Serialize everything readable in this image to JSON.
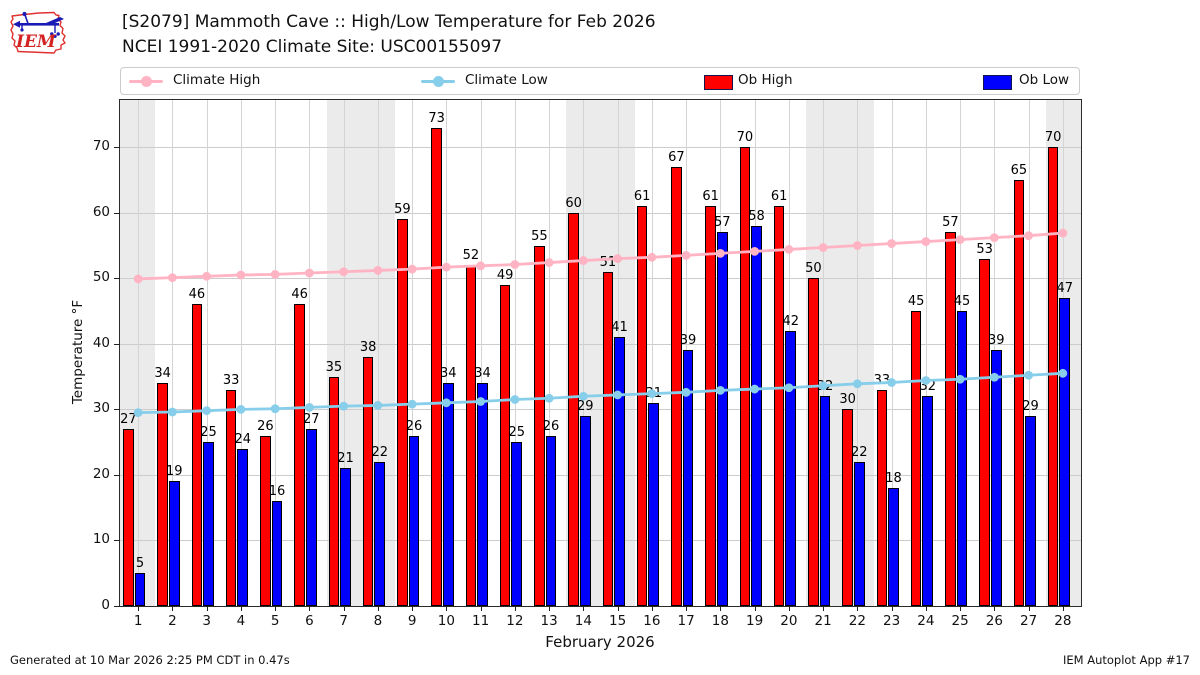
{
  "header": {
    "title_line1": "[S2079] Mammoth Cave :: High/Low Temperature for Feb 2026",
    "title_line2": "NCEI 1991-2020 Climate Site: USC00155097",
    "logo_text": "IEM"
  },
  "footer": {
    "generated": "Generated at 10 Mar 2026 2:25 PM CDT in 0.47s",
    "app": "IEM Autoplot App #17"
  },
  "chart_data": {
    "type": "bar",
    "title": "[S2079] Mammoth Cave :: High/Low Temperature for Feb 2026",
    "subtitle": "NCEI 1991-2020 Climate Site: USC00155097",
    "xlabel": "February 2026",
    "ylabel": "Temperature °F",
    "categories": [
      1,
      2,
      3,
      4,
      5,
      6,
      7,
      8,
      9,
      10,
      11,
      12,
      13,
      14,
      15,
      16,
      17,
      18,
      19,
      20,
      21,
      22,
      23,
      24,
      25,
      26,
      27,
      28
    ],
    "series": [
      {
        "name": "Climate High",
        "type": "line",
        "color": "#ffb3c3",
        "values": [
          49.9,
          50.1,
          50.3,
          50.5,
          50.6,
          50.8,
          51.0,
          51.2,
          51.4,
          51.7,
          51.9,
          52.1,
          52.4,
          52.7,
          53.0,
          53.2,
          53.5,
          53.8,
          54.1,
          54.4,
          54.7,
          55.0,
          55.3,
          55.6,
          55.9,
          56.2,
          56.5,
          56.9
        ]
      },
      {
        "name": "Climate Low",
        "type": "line",
        "color": "#87ceeb",
        "values": [
          29.5,
          29.6,
          29.8,
          30.0,
          30.1,
          30.3,
          30.5,
          30.6,
          30.8,
          31.0,
          31.2,
          31.5,
          31.7,
          32.0,
          32.2,
          32.4,
          32.6,
          32.9,
          33.1,
          33.3,
          33.6,
          33.9,
          34.1,
          34.4,
          34.6,
          34.9,
          35.2,
          35.5
        ]
      },
      {
        "name": "Ob High",
        "type": "bar",
        "color": "#ff0000",
        "values": [
          27,
          34,
          46,
          33,
          26,
          46,
          35,
          38,
          59,
          73,
          52,
          49,
          55,
          60,
          51,
          61,
          67,
          61,
          70,
          61,
          50,
          30,
          33,
          45,
          57,
          53,
          65,
          70
        ]
      },
      {
        "name": "Ob Low",
        "type": "bar",
        "color": "#0000ff",
        "values": [
          5,
          19,
          25,
          24,
          16,
          27,
          21,
          22,
          26,
          34,
          34,
          25,
          26,
          29,
          41,
          31,
          39,
          57,
          58,
          42,
          32,
          22,
          18,
          32,
          45,
          39,
          29,
          47
        ]
      }
    ],
    "yticks": [
      0,
      10,
      20,
      30,
      40,
      50,
      60,
      70
    ],
    "ylim": [
      0,
      77.2
    ],
    "xlim": [
      0.47,
      28.53
    ],
    "grid": true,
    "legend_position": "top",
    "weekend_bands": [
      [
        0.47,
        1.5
      ],
      [
        6.5,
        8.5
      ],
      [
        13.5,
        15.5
      ],
      [
        20.5,
        22.5
      ],
      [
        27.5,
        28.53
      ]
    ],
    "colors": {
      "grid": "#cccccc",
      "weekend_band": "#ebebeb",
      "spine": "#2a2a2a",
      "label": "#000000"
    }
  }
}
